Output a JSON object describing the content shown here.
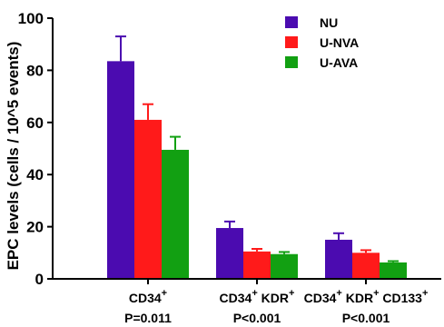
{
  "chart_data": {
    "type": "bar",
    "title": "",
    "xlabel": "",
    "ylabel": "EPC levels (cells / 10^5 events)",
    "ylim": [
      0,
      100
    ],
    "yticks": [
      0,
      20,
      40,
      60,
      80,
      100
    ],
    "grid": false,
    "legend_position": "top-right",
    "categories": [
      {
        "main": "CD34",
        "sup1": "+",
        "mid": "",
        "sup2": "",
        "tail": "",
        "sup3": "",
        "pvalue": "P=0.011"
      },
      {
        "main": "CD34",
        "sup1": "+",
        "mid": " KDR",
        "sup2": "+",
        "tail": "",
        "sup3": "",
        "pvalue": "P<0.001"
      },
      {
        "main": "CD34",
        "sup1": "+",
        "mid": " KDR",
        "sup2": "+",
        "tail": " CD133",
        "sup3": "+",
        "pvalue": "P<0.001"
      }
    ],
    "series": [
      {
        "name": "NU",
        "color": "#4b0bb0",
        "values": [
          83.5,
          19.5,
          15.0
        ],
        "errors": [
          9.5,
          2.5,
          2.5
        ]
      },
      {
        "name": "U-NVA",
        "color": "#ff1a1a",
        "values": [
          61.0,
          10.5,
          10.0
        ],
        "errors": [
          6.0,
          1.0,
          1.0
        ]
      },
      {
        "name": "U-AVA",
        "color": "#12a012",
        "values": [
          49.5,
          9.5,
          6.3
        ],
        "errors": [
          5.0,
          0.8,
          0.5
        ]
      }
    ]
  }
}
